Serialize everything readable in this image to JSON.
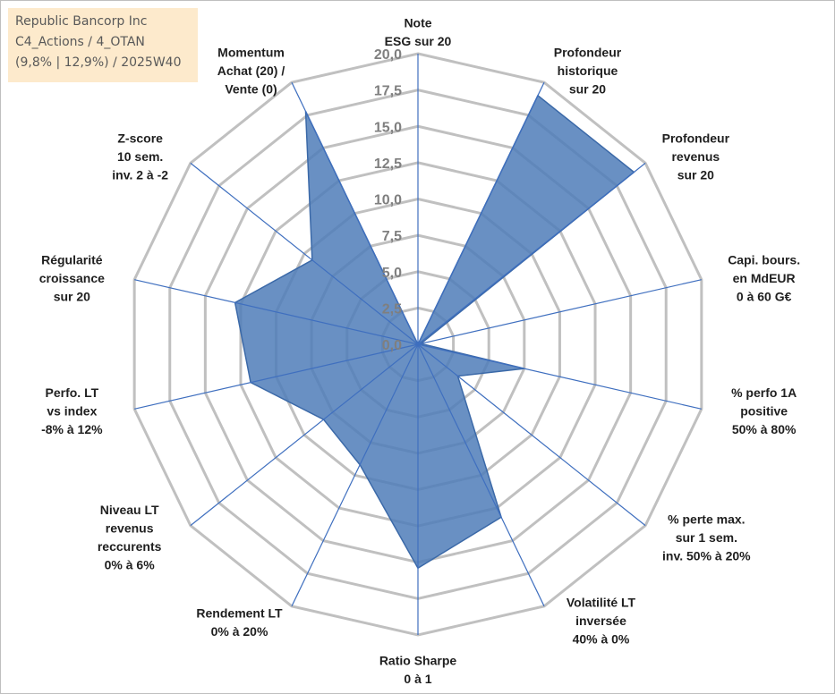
{
  "info": {
    "line1": "Republic Bancorp Inc",
    "line2": "C4_Actions / 4_OTAN",
    "line3": "(9,8% | 12,9%) / 2025W40"
  },
  "chart_data": {
    "type": "radar",
    "r_range": [
      0,
      20
    ],
    "tick_labels": [
      "0,0",
      "2,5",
      "5,0",
      "7,5",
      "10,0",
      "12,5",
      "15,0",
      "17,5",
      "20,0"
    ],
    "axes": [
      {
        "lines": [
          "Note",
          "ESG sur 20"
        ],
        "value": 0
      },
      {
        "lines": [
          "Profondeur",
          "historique",
          "sur 20"
        ],
        "value": 19
      },
      {
        "lines": [
          "Profondeur",
          "revenus",
          "sur 20"
        ],
        "value": 19
      },
      {
        "lines": [
          "Capi. bours.",
          "en MdEUR",
          "0 à 60 G€"
        ],
        "value": 0.2
      },
      {
        "lines": [
          "% perfo 1A",
          "positive",
          "50% à 80%"
        ],
        "value": 7.5
      },
      {
        "lines": [
          "% perte max.",
          "sur 1 sem.",
          "inv. 50% à 20%"
        ],
        "value": 3.5
      },
      {
        "lines": [
          "Volatilité LT",
          "inversée",
          "40% à 0%"
        ],
        "value": 13.2
      },
      {
        "lines": [
          "Ratio Sharpe",
          "0 à 1"
        ],
        "value": 15.4
      },
      {
        "lines": [
          "Rendement LT",
          "0% à 20%"
        ],
        "value": 9.2
      },
      {
        "lines": [
          "Niveau LT",
          "revenus",
          "reccurents",
          "0% à 6%"
        ],
        "value": 8.3
      },
      {
        "lines": [
          "Perfo. LT",
          "vs index",
          "-8% à 12%"
        ],
        "value": 11.8
      },
      {
        "lines": [
          "Régularité",
          "croissance",
          "sur 20"
        ],
        "value": 12.9
      },
      {
        "lines": [
          "Z-score",
          "10 sem.",
          "inv. 2 à -2"
        ],
        "value": 9.3
      },
      {
        "lines": [
          "Momentum",
          "Achat (20) /",
          "Vente (0)"
        ],
        "value": 17.8
      }
    ],
    "colors": {
      "fill": "#4f7db8",
      "stroke": "#3b69a8",
      "grid": "#c0c0c0",
      "axis": "#3f6fbf"
    }
  }
}
